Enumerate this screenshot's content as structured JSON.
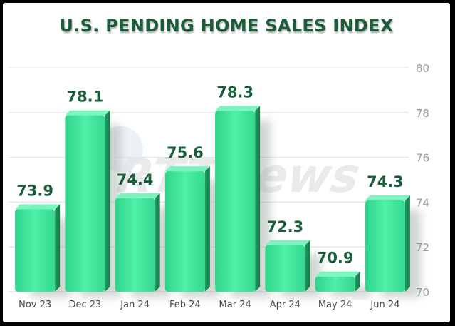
{
  "chart_data": {
    "type": "bar",
    "title": "U.S. PENDING HOME SALES INDEX",
    "categories": [
      "Nov 23",
      "Dec 23",
      "Jan 24",
      "Feb 24",
      "Mar 24",
      "Apr 24",
      "May 24",
      "Jun 24"
    ],
    "values": [
      73.9,
      78.1,
      74.4,
      75.6,
      78.3,
      72.3,
      70.9,
      74.3
    ],
    "data_labels": [
      "73.9",
      "78.1",
      "74.4",
      "75.6",
      "78.3",
      "72.3",
      "70.9",
      "74.3"
    ],
    "ylim": [
      70,
      80
    ],
    "yticks": [
      "70",
      "72",
      "74",
      "76",
      "78",
      "80"
    ],
    "ytick_values": [
      70,
      72,
      74,
      76,
      78,
      80
    ],
    "y_axis_position": "right",
    "grid": true,
    "legend": "none",
    "bar_color": "#3fe39a",
    "bar_shadow_color": "#1f9a60",
    "label_color": "#1b5e3a"
  },
  "watermark": {
    "text": "RTTNews"
  },
  "colors": {
    "title": "#1a5d38",
    "axis_text": "#9a9a9a",
    "grid": "#e6e6e6"
  }
}
